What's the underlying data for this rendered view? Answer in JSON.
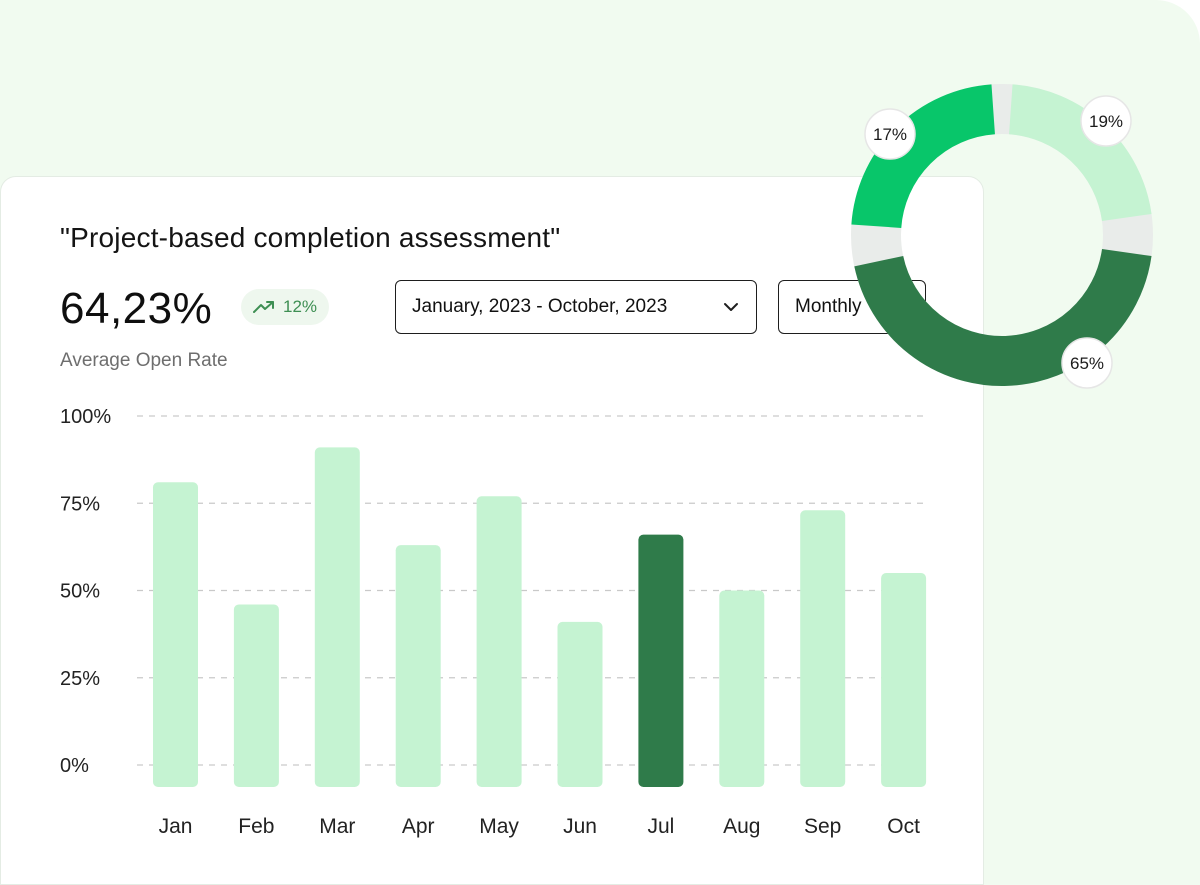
{
  "card": {
    "title": "\"Project-based completion assessment\"",
    "kpi_value": "64,23%",
    "trend_value": "12%",
    "subtitle": "Average Open Rate",
    "date_range": "January, 2023 - October, 2023",
    "period": "Monthly"
  },
  "colors": {
    "bar_default": "#c5f3d2",
    "bar_highlight": "#2f7b4a",
    "donut_dark": "#2f7b4a",
    "donut_bright": "#08c66a",
    "donut_light": "#c5f3d2",
    "donut_track": "#e9ecea"
  },
  "chart_data": [
    {
      "type": "bar",
      "title": "\"Project-based completion assessment\"",
      "categories": [
        "Jan",
        "Feb",
        "Mar",
        "Apr",
        "May",
        "Jun",
        "Jul",
        "Aug",
        "Sep",
        "Oct"
      ],
      "values": [
        81,
        46,
        91,
        63,
        77,
        41,
        66,
        50,
        73,
        55
      ],
      "highlight": "Jul",
      "yticks": [
        "0%",
        "25%",
        "50%",
        "75%",
        "100%"
      ],
      "ylim": [
        0,
        100
      ],
      "grid": true,
      "xlabel": "",
      "ylabel": ""
    },
    {
      "type": "pie",
      "variant": "donut",
      "labels": [
        "17%",
        "19%",
        "65%"
      ],
      "values": [
        17,
        19,
        65
      ]
    }
  ]
}
